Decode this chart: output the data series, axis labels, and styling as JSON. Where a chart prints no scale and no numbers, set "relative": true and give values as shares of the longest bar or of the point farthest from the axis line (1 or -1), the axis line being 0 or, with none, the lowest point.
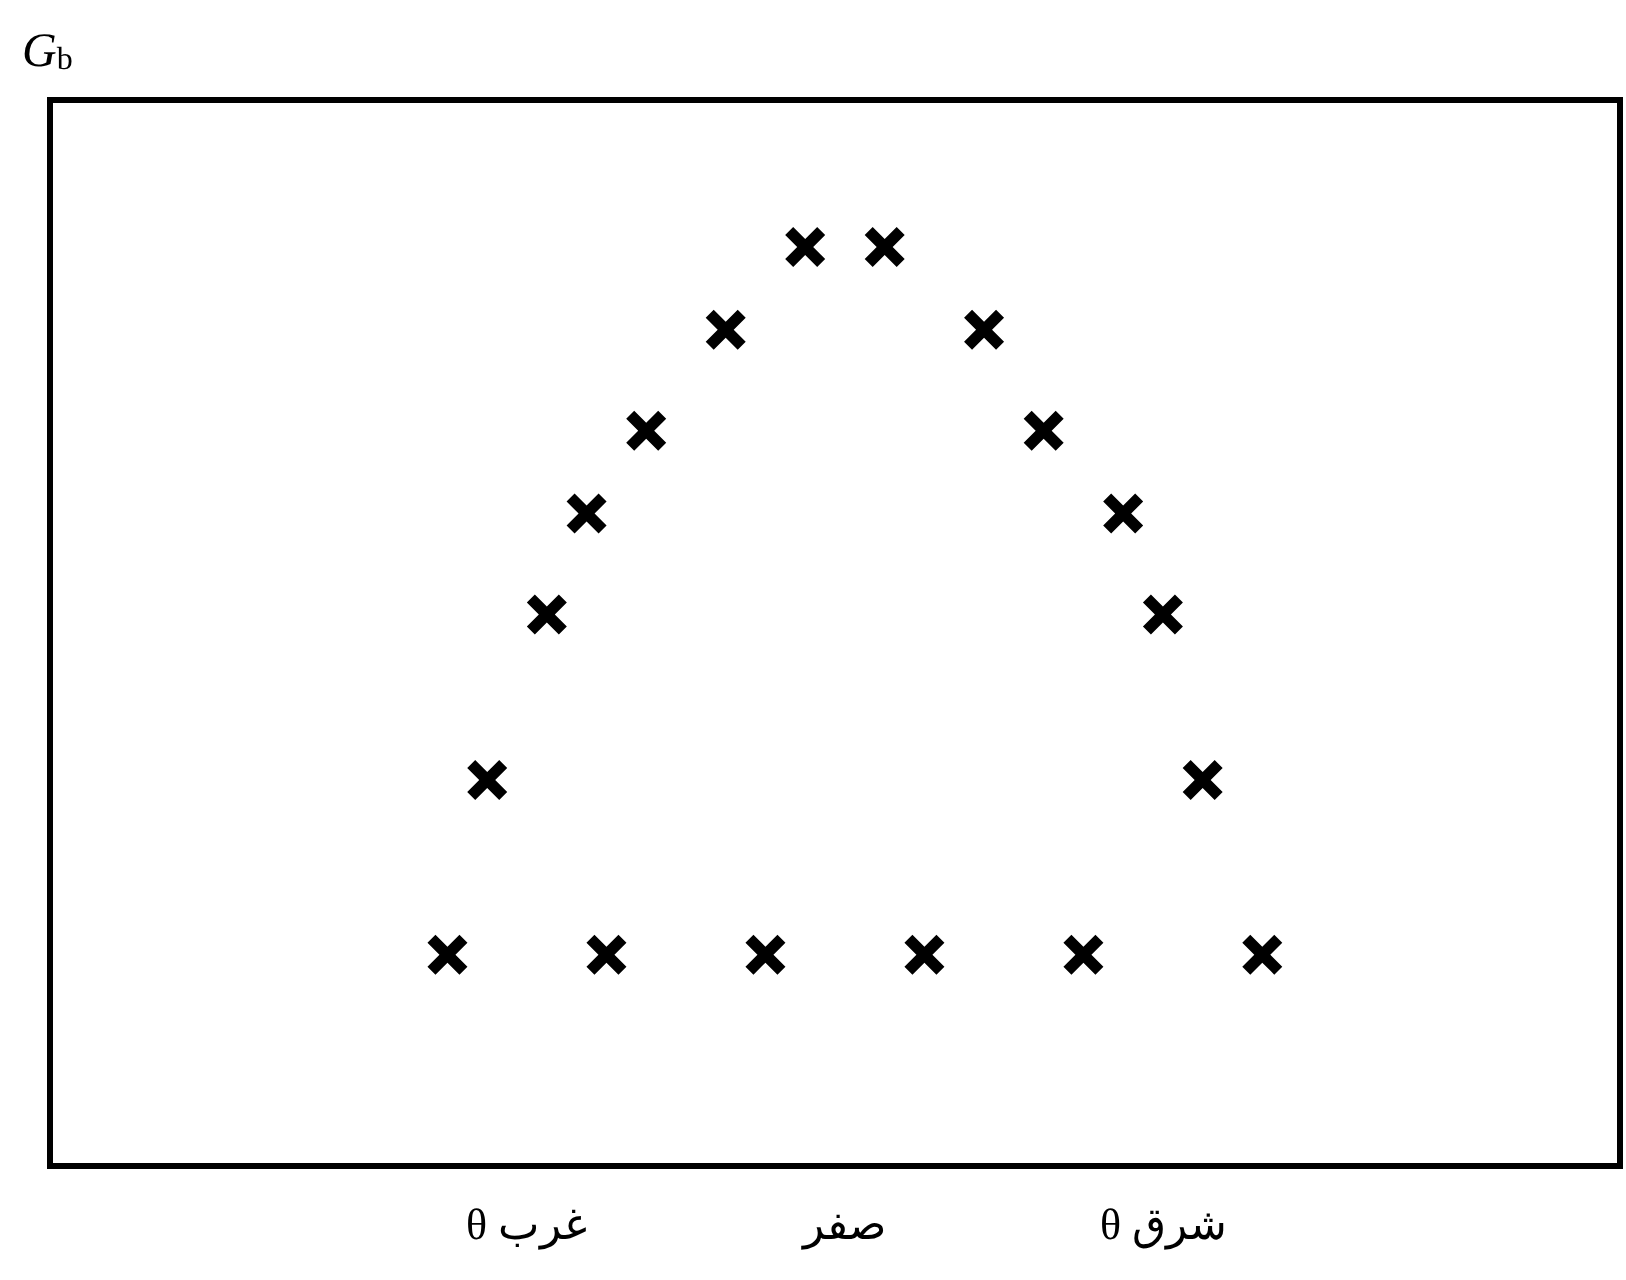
{
  "chart_data": {
    "type": "scatter",
    "ylabel": "G$_{b}$",
    "relative": true,
    "marker": "cross",
    "tick_labels": "x",
    "categories": [
      null,
      null,
      null,
      null,
      null,
      null,
      null,
      null,
      null,
      null,
      null,
      null,
      null,
      null,
      null,
      null,
      null,
      null,
      null,
      null,
      null,
      null,
      null,
      null,
      "θ غرب",
      null,
      null,
      null,
      null,
      null,
      null,
      null,
      null,
      null,
      null,
      null,
      null,
      null,
      null,
      null,
      "صفر",
      null,
      null,
      null,
      null,
      null,
      null,
      null,
      null,
      null,
      null,
      null,
      null,
      null,
      null,
      null,
      "θ شرق",
      null,
      null,
      null,
      null,
      null,
      null,
      null,
      null,
      null,
      null,
      null,
      null,
      null,
      null,
      null,
      null,
      null,
      null,
      null,
      null,
      null,
      null,
      null
    ],
    "series": [
      {
        "color": "#000000",
        "values": [
          null,
          null,
          null,
          null,
          null,
          null,
          null,
          null,
          null,
          null,
          null,
          null,
          null,
          null,
          null,
          null,
          null,
          null,
          null,
          null,
          0.23,
          null,
          0.42,
          null,
          null,
          0.6,
          null,
          0.71,
          0.23,
          null,
          0.8,
          null,
          null,
          null,
          0.91,
          null,
          0.23,
          null,
          1,
          null,
          null,
          null,
          1,
          null,
          0.23,
          null,
          null,
          0.91,
          null,
          null,
          0.8,
          null,
          0.23,
          null,
          0.71,
          null,
          0.6,
          null,
          0.42,
          null,
          null,
          0.23,
          null,
          null,
          null,
          null,
          null,
          null,
          null,
          null,
          null,
          null,
          null,
          null,
          null,
          null,
          null,
          null,
          null,
          null
        ]
      }
    ]
  }
}
